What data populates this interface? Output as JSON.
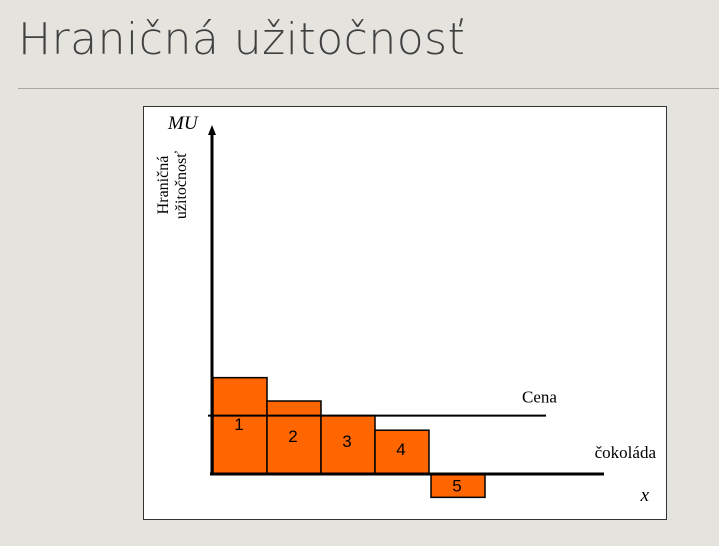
{
  "slide": {
    "title": "Hraničná užitočnosť"
  },
  "colors": {
    "bar_fill": "#ff6600",
    "bar_stroke": "#000000",
    "background": "#e4e3de"
  },
  "chart_data": {
    "type": "bar",
    "categories": [
      "1",
      "2",
      "3",
      "4",
      "5"
    ],
    "values": [
      3.3,
      2.5,
      2.0,
      1.5,
      -0.8
    ],
    "bar_labels": [
      "1",
      "2",
      "3",
      "4",
      "5"
    ],
    "y_axis_label": "MU",
    "y_axis_title_lines": [
      "Hraničná",
      "užitočnosť"
    ],
    "x_axis_label": "x",
    "x_axis_title": "čokoláda",
    "price_line": {
      "label": "Cena",
      "value": 2.0
    },
    "ylim": [
      -0.9,
      11.2
    ],
    "grid": false
  }
}
